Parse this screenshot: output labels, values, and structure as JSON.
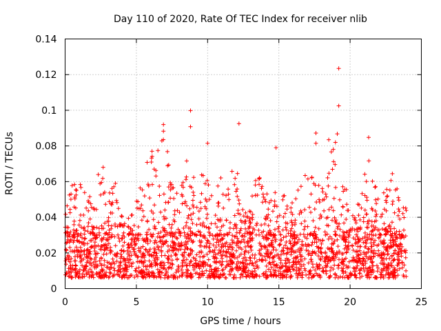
{
  "chart_data": {
    "type": "scatter",
    "title": "Day 110 of 2020, Rate Of TEC Index for receiver nlib",
    "xlabel": "GPS time / hours",
    "ylabel": "ROTI / TECUs",
    "xlim": [
      0,
      25
    ],
    "ylim": [
      0,
      0.14
    ],
    "grid": true,
    "marker": "+",
    "marker_color": "#ff0000",
    "xticks": [
      "0",
      "5",
      "10",
      "15",
      "20",
      "25"
    ],
    "yticks": [
      "0",
      "0.02",
      "0.04",
      "0.06",
      "0.08",
      "0.1",
      "0.12",
      "0.14"
    ],
    "series": [
      {
        "name": "ROTI",
        "color": "#ff0000",
        "baseline_band": [
          0.006,
          0.03
        ],
        "envelope": [
          [
            0.0,
            0.045
          ],
          [
            0.5,
            0.058
          ],
          [
            1.0,
            0.06
          ],
          [
            1.5,
            0.056
          ],
          [
            2.0,
            0.052
          ],
          [
            2.5,
            0.075
          ],
          [
            3.0,
            0.058
          ],
          [
            3.5,
            0.062
          ],
          [
            4.0,
            0.04
          ],
          [
            4.5,
            0.045
          ],
          [
            5.0,
            0.05
          ],
          [
            5.5,
            0.073
          ],
          [
            6.0,
            0.077
          ],
          [
            6.5,
            0.08
          ],
          [
            7.0,
            0.092
          ],
          [
            7.5,
            0.06
          ],
          [
            8.0,
            0.055
          ],
          [
            8.5,
            0.075
          ],
          [
            9.0,
            0.065
          ],
          [
            9.5,
            0.065
          ],
          [
            10.0,
            0.067
          ],
          [
            10.5,
            0.065
          ],
          [
            11.0,
            0.063
          ],
          [
            11.5,
            0.06
          ],
          [
            12.0,
            0.077
          ],
          [
            12.5,
            0.045
          ],
          [
            13.0,
            0.047
          ],
          [
            13.5,
            0.067
          ],
          [
            14.0,
            0.06
          ],
          [
            14.5,
            0.05
          ],
          [
            15.0,
            0.07
          ],
          [
            15.5,
            0.047
          ],
          [
            16.0,
            0.05
          ],
          [
            16.5,
            0.06
          ],
          [
            17.0,
            0.065
          ],
          [
            17.5,
            0.062
          ],
          [
            18.0,
            0.06
          ],
          [
            18.5,
            0.077
          ],
          [
            19.0,
            0.087
          ],
          [
            19.5,
            0.065
          ],
          [
            20.0,
            0.05
          ],
          [
            20.5,
            0.048
          ],
          [
            21.0,
            0.065
          ],
          [
            21.5,
            0.078
          ],
          [
            22.0,
            0.06
          ],
          [
            22.5,
            0.055
          ],
          [
            23.0,
            0.069
          ],
          [
            23.5,
            0.05
          ],
          [
            24.0,
            0.045
          ]
        ],
        "notable_points": [
          {
            "x": 19.2,
            "y": 0.1235
          },
          {
            "x": 19.2,
            "y": 0.1025
          },
          {
            "x": 8.8,
            "y": 0.0998
          },
          {
            "x": 12.2,
            "y": 0.0925
          },
          {
            "x": 6.9,
            "y": 0.092
          },
          {
            "x": 8.8,
            "y": 0.0908
          },
          {
            "x": 6.9,
            "y": 0.0883
          },
          {
            "x": 17.6,
            "y": 0.0872
          },
          {
            "x": 19.1,
            "y": 0.0868
          },
          {
            "x": 21.3,
            "y": 0.0848
          },
          {
            "x": 18.5,
            "y": 0.0835
          },
          {
            "x": 10.0,
            "y": 0.0815
          },
          {
            "x": 17.6,
            "y": 0.0815
          },
          {
            "x": 14.8,
            "y": 0.079
          },
          {
            "x": 6.1,
            "y": 0.077
          }
        ]
      }
    ]
  }
}
